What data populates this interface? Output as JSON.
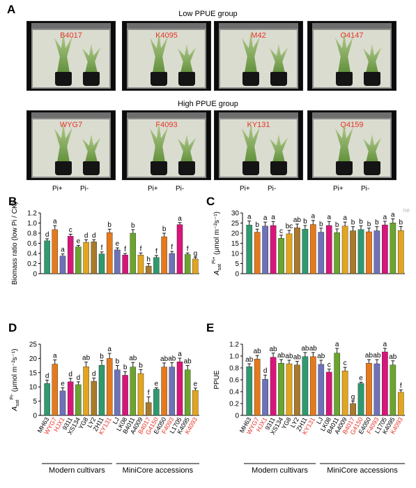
{
  "panelA": {
    "letter": "A",
    "low_group_title": "Low PPUE group",
    "high_group_title": "High PPUE group",
    "low_photos": [
      "B4017",
      "K4095",
      "M42",
      "O4147"
    ],
    "high_photos": [
      "WYG7",
      "F4093",
      "KY131",
      "Q4159"
    ],
    "pi_labels": [
      "Pi+",
      "Pi-"
    ]
  },
  "colors": {
    "green": "#2e9a6e",
    "orange": "#e57a1c",
    "purple": "#6e72b8",
    "magenta": "#d8157a",
    "lime": "#6aa52e",
    "gold": "#e2a51f",
    "brown": "#a87a2a",
    "red": "#e8352a"
  },
  "chart_data": [
    {
      "id": "B",
      "type": "bar",
      "letter": "B",
      "ylabel": "Biomass ratio (low Pi / CK)",
      "ylim": [
        0,
        1.2
      ],
      "yticks": [
        "0",
        "0.2",
        "0.4",
        "0.6",
        "0.8",
        "1.0",
        "1.2"
      ],
      "values": [
        0.65,
        0.87,
        0.35,
        0.74,
        0.53,
        0.62,
        0.63,
        0.39,
        0.81,
        0.47,
        0.37,
        0.8,
        0.37,
        0.15,
        0.32,
        0.73,
        0.4,
        0.97,
        0.38,
        0.29
      ],
      "errors": [
        0.04,
        0.08,
        0.04,
        0.04,
        0.03,
        0.05,
        0.04,
        0.04,
        0.07,
        0.04,
        0.03,
        0.07,
        0.04,
        0.05,
        0.04,
        0.07,
        0.04,
        0.04,
        0.03,
        0.03
      ],
      "letters": [
        "d",
        "a",
        "a",
        "c",
        "e",
        "d",
        "d",
        "f",
        "b",
        "e",
        "f",
        "b",
        "f",
        "h",
        "f",
        "b",
        "f",
        "a",
        "f",
        "g"
      ]
    },
    {
      "id": "C",
      "type": "bar",
      "letter": "C",
      "ylabel": "A",
      "ylabel_sub": "sat",
      "ylabel_sup": "Pi+",
      "ylabel_unit": " (μmol m⁻²s⁻¹)",
      "ylim": [
        0,
        30
      ],
      "yticks": [
        "0",
        "5",
        "10",
        "15",
        "20",
        "25",
        "30"
      ],
      "values": [
        24.0,
        20.5,
        23.5,
        23.8,
        17.5,
        19.7,
        22.7,
        22.0,
        24.3,
        20.5,
        23.8,
        20.3,
        23.5,
        21.2,
        21.8,
        20.7,
        21.2,
        24.1,
        25.1,
        21.3
      ],
      "errors": [
        2.0,
        1.5,
        2.0,
        2.0,
        1.5,
        1.7,
        1.8,
        1.8,
        2.0,
        2.0,
        2.0,
        1.8,
        2.0,
        2.0,
        1.8,
        1.8,
        2.0,
        1.8,
        2.0,
        2.0
      ],
      "letters": [
        "a",
        "b",
        "a",
        "a",
        "c",
        "bc",
        "ab",
        "b",
        "a",
        "b",
        "a",
        "b",
        "a",
        "b",
        "b",
        "b",
        "b",
        "a",
        "a",
        "b"
      ]
    },
    {
      "id": "D",
      "type": "bar",
      "letter": "D",
      "ylabel": "A",
      "ylabel_sub": "sat",
      "ylabel_sup": "Pi-",
      "ylabel_unit": " (μmol m⁻²s⁻¹)",
      "ylim": [
        0,
        25
      ],
      "yticks": [
        "0",
        "5",
        "10",
        "15",
        "20",
        "25"
      ],
      "values": [
        11.2,
        18.0,
        8.6,
        11.8,
        10.8,
        17.1,
        12.0,
        17.6,
        20.0,
        16.0,
        14.1,
        17.0,
        14.7,
        4.5,
        9.2,
        17.0,
        17.0,
        18.8,
        16.0,
        8.8
      ],
      "errors": [
        1.2,
        1.5,
        1.1,
        1.2,
        1.0,
        1.6,
        1.1,
        1.7,
        1.8,
        1.5,
        1.3,
        1.6,
        1.4,
        2.0,
        0.5,
        1.4,
        1.5,
        1.3,
        1.5,
        0.8
      ],
      "letters": [
        "d",
        "a",
        "e",
        "d",
        "d",
        "ab",
        "d",
        "b",
        "a",
        "b",
        "b",
        "ab",
        "b",
        "f",
        "e",
        "ab",
        "ab",
        "a",
        "ab",
        "e"
      ]
    },
    {
      "id": "E",
      "type": "bar",
      "letter": "E",
      "ylabel": "PPUE",
      "ylim": [
        0,
        1.2
      ],
      "yticks": [
        "0",
        "0.2",
        "0.4",
        "0.6",
        "0.8",
        "1.0",
        "1.2"
      ],
      "values": [
        0.82,
        0.95,
        0.61,
        0.98,
        0.88,
        0.87,
        0.85,
        0.99,
        0.99,
        0.86,
        0.73,
        1.05,
        0.75,
        0.2,
        0.54,
        0.88,
        0.87,
        1.07,
        0.85,
        0.39
      ],
      "errors": [
        0.05,
        0.06,
        0.07,
        0.07,
        0.06,
        0.06,
        0.06,
        0.07,
        0.07,
        0.07,
        0.05,
        0.08,
        0.06,
        0.04,
        0.02,
        0.06,
        0.07,
        0.06,
        0.07,
        0.04
      ],
      "letters": [
        "ab",
        "ab",
        "d",
        "ab",
        "ab",
        "ab",
        "ab",
        "ab",
        "ab",
        "ab",
        "c",
        "a",
        "c",
        "g",
        "e",
        "ab",
        "ab",
        "a",
        "ab",
        "f"
      ]
    }
  ],
  "categories": [
    "MH63",
    "WYG7",
    "HJX1",
    "9311",
    "XS134",
    "YG8",
    "LY2",
    "ZH11",
    "KY131",
    "LJ",
    "LK08",
    "B4011",
    "A4009",
    "B4017",
    "G4150",
    "E4050",
    "F4093",
    "L1705",
    "K4095",
    "K4093"
  ],
  "category_colors": [
    "green",
    "orange",
    "purple",
    "magenta",
    "lime",
    "gold",
    "brown",
    "green",
    "orange",
    "purple",
    "magenta",
    "lime",
    "gold",
    "brown",
    "green",
    "orange",
    "purple",
    "magenta",
    "lime",
    "gold"
  ],
  "red_labels": [
    false,
    true,
    true,
    false,
    false,
    false,
    false,
    false,
    true,
    false,
    false,
    false,
    false,
    true,
    true,
    false,
    true,
    false,
    false,
    true
  ],
  "group_labels": {
    "modern": "Modern cultivars",
    "minicore": "MiniCore accessions"
  },
  "watermark": "ne"
}
